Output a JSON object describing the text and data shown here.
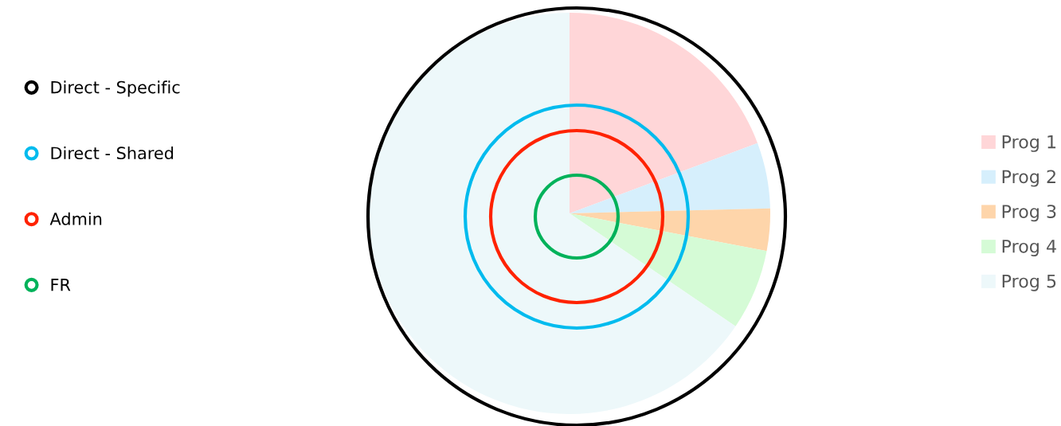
{
  "chart_data": [
    {
      "type": "pie",
      "categories": [
        "Prog 1",
        "Prog 2",
        "Prog 3",
        "Prog 4",
        "Prog 5"
      ],
      "values": [
        19.3,
        5.3,
        3.4,
        6.5,
        65.5
      ],
      "colors": [
        "#ffd6d8",
        "#d6effc",
        "#fed5aa",
        "#d5fbd6",
        "#edf8fa"
      ],
      "legend": "right"
    },
    {
      "type": "other",
      "legend": "left",
      "series": [
        {
          "name": "Direct - Specific",
          "color": "#000000"
        },
        {
          "name": "Direct - Shared",
          "color": "#00bbee"
        },
        {
          "name": "Admin",
          "color": "#ff2200"
        },
        {
          "name": "FR",
          "color": "#00b25a"
        }
      ]
    }
  ]
}
